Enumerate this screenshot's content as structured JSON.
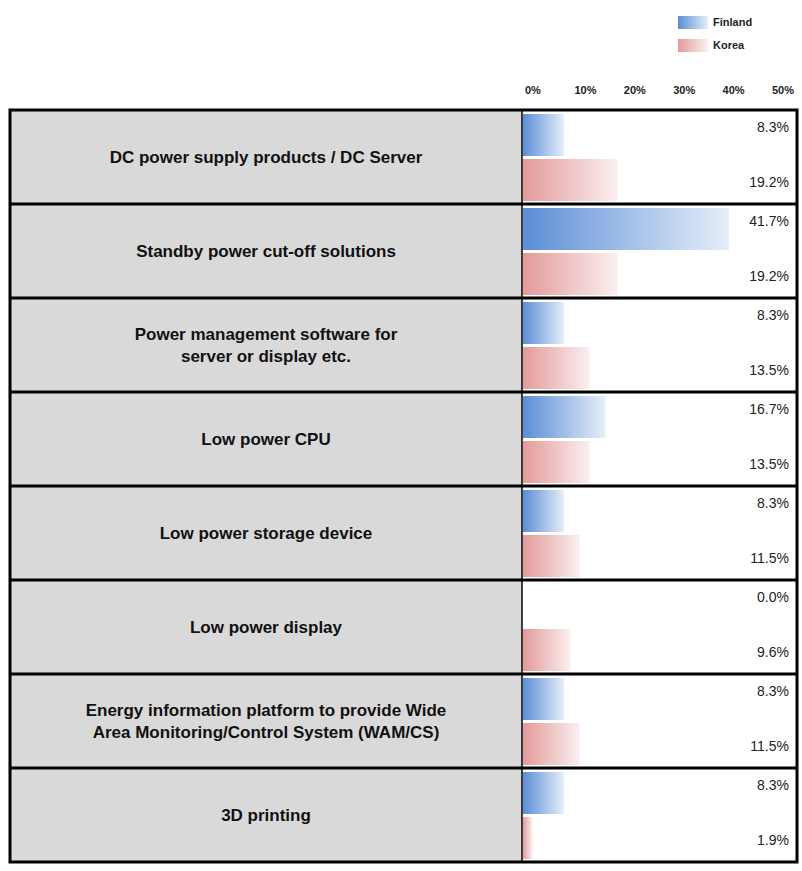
{
  "chart_data": {
    "type": "bar",
    "orientation": "horizontal",
    "categories": [
      "DC power supply products / DC Server",
      "Standby power cut-off solutions",
      "Power management software for\nserver or display etc.",
      "Low power CPU",
      "Low power storage device",
      "Low power display",
      "Energy information platform to provide Wide\nArea Monitoring/Control System (WAM/CS)",
      "3D printing"
    ],
    "series": [
      {
        "name": "Finland",
        "color": "#5b8ed6",
        "values": [
          8.3,
          41.7,
          8.3,
          16.7,
          8.3,
          0.0,
          8.3,
          8.3
        ],
        "value_labels": [
          "8.3%",
          "41.7%",
          "8.3%",
          "16.7%",
          "8.3%",
          "0.0%",
          "8.3%",
          "8.3%"
        ]
      },
      {
        "name": "Korea",
        "color": "#e39a9a",
        "values": [
          19.2,
          19.2,
          13.5,
          13.5,
          11.5,
          9.6,
          11.5,
          1.9
        ],
        "value_labels": [
          "19.2%",
          "19.2%",
          "13.5%",
          "13.5%",
          "11.5%",
          "9.6%",
          "11.5%",
          "1.9%"
        ]
      }
    ],
    "xlim": [
      0,
      50
    ],
    "xticks": [
      {
        "value": 0,
        "label": "0%"
      },
      {
        "value": 10,
        "label": "10%"
      },
      {
        "value": 20,
        "label": "20%"
      },
      {
        "value": 30,
        "label": "30%"
      },
      {
        "value": 40,
        "label": "40%"
      },
      {
        "value": 50,
        "label": "50%"
      }
    ],
    "grid": false,
    "legend": "top-right",
    "data_labels": true,
    "tick_labels": "x"
  }
}
